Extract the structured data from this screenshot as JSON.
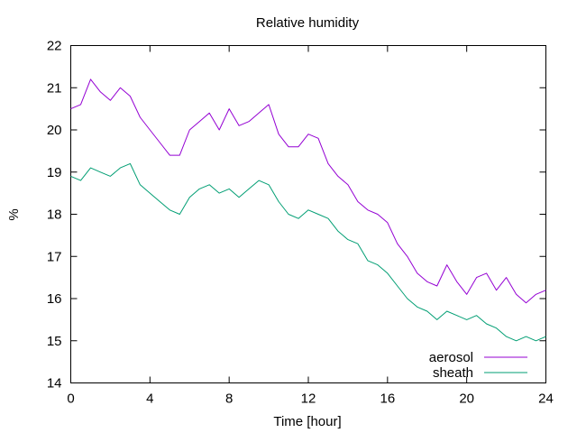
{
  "chart_data": {
    "type": "line",
    "title": "Relative humidity",
    "xlabel": "Time [hour]",
    "ylabel": "%",
    "xlim": [
      0,
      24
    ],
    "ylim": [
      14,
      22
    ],
    "xticks": [
      0,
      4,
      8,
      12,
      16,
      20,
      24
    ],
    "yticks": [
      14,
      15,
      16,
      17,
      18,
      19,
      20,
      21,
      22
    ],
    "grid": false,
    "legend_position": "bottom-right",
    "series": [
      {
        "name": "aerosol",
        "color": "#9400d3",
        "x": [
          0,
          0.5,
          1,
          1.5,
          2,
          2.5,
          3,
          3.5,
          4,
          4.5,
          5,
          5.5,
          6,
          6.5,
          7,
          7.5,
          8,
          8.5,
          9,
          9.5,
          10,
          10.5,
          11,
          11.5,
          12,
          12.5,
          13,
          13.5,
          14,
          14.5,
          15,
          15.5,
          16,
          16.5,
          17,
          17.5,
          18,
          18.5,
          19,
          19.5,
          20,
          20.5,
          21,
          21.5,
          22,
          22.5,
          23,
          23.5,
          24
        ],
        "y": [
          20.5,
          20.6,
          21.2,
          20.9,
          20.7,
          21.0,
          20.8,
          20.3,
          20.0,
          19.7,
          19.4,
          19.4,
          20.0,
          20.2,
          20.4,
          20.0,
          20.5,
          20.1,
          20.2,
          20.4,
          20.6,
          19.9,
          19.6,
          19.6,
          19.9,
          19.8,
          19.2,
          18.9,
          18.7,
          18.3,
          18.1,
          18.0,
          17.8,
          17.3,
          17.0,
          16.6,
          16.4,
          16.3,
          16.8,
          16.4,
          16.1,
          16.5,
          16.6,
          16.2,
          16.5,
          16.1,
          15.9,
          16.1,
          16.2
        ]
      },
      {
        "name": "sheath",
        "color": "#009e73",
        "x": [
          0,
          0.5,
          1,
          1.5,
          2,
          2.5,
          3,
          3.5,
          4,
          4.5,
          5,
          5.5,
          6,
          6.5,
          7,
          7.5,
          8,
          8.5,
          9,
          9.5,
          10,
          10.5,
          11,
          11.5,
          12,
          12.5,
          13,
          13.5,
          14,
          14.5,
          15,
          15.5,
          16,
          16.5,
          17,
          17.5,
          18,
          18.5,
          19,
          19.5,
          20,
          20.5,
          21,
          21.5,
          22,
          22.5,
          23,
          23.5,
          24
        ],
        "y": [
          18.9,
          18.8,
          19.1,
          19.0,
          18.9,
          19.1,
          19.2,
          18.7,
          18.5,
          18.3,
          18.1,
          18.0,
          18.4,
          18.6,
          18.7,
          18.5,
          18.6,
          18.4,
          18.6,
          18.8,
          18.7,
          18.3,
          18.0,
          17.9,
          18.1,
          18.0,
          17.9,
          17.6,
          17.4,
          17.3,
          16.9,
          16.8,
          16.6,
          16.3,
          16.0,
          15.8,
          15.7,
          15.5,
          15.7,
          15.6,
          15.5,
          15.6,
          15.4,
          15.3,
          15.1,
          15.0,
          15.1,
          15.0,
          15.1
        ]
      }
    ]
  }
}
